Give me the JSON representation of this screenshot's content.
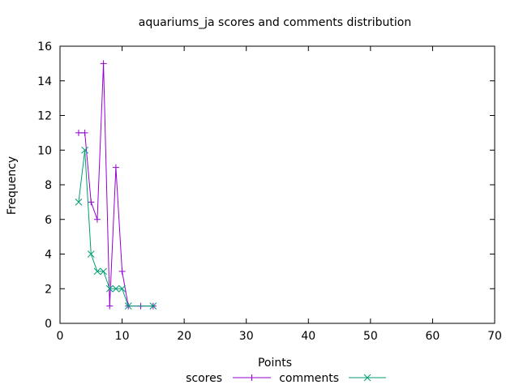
{
  "chart_data": {
    "type": "line",
    "title": "aquariums_ja scores and comments distribution",
    "xlabel": "Points",
    "ylabel": "Frequency",
    "xlim": [
      0,
      70
    ],
    "ylim": [
      0,
      16
    ],
    "xticks": [
      0,
      10,
      20,
      30,
      40,
      50,
      60,
      70
    ],
    "yticks": [
      0,
      2,
      4,
      6,
      8,
      10,
      12,
      14,
      16
    ],
    "grid": false,
    "legend_position": "bottom",
    "series": [
      {
        "name": "scores",
        "color": "#9400d3",
        "marker": "plus",
        "x": [
          3,
          4,
          5,
          6,
          7,
          8,
          9,
          10,
          11,
          13,
          15
        ],
        "y": [
          11,
          11,
          7,
          6,
          15,
          1,
          9,
          3,
          1,
          1,
          1
        ]
      },
      {
        "name": "comments",
        "color": "#009e73",
        "marker": "cross",
        "x": [
          3,
          4,
          5,
          6,
          7,
          8,
          9,
          10,
          11,
          15
        ],
        "y": [
          7,
          10,
          4,
          3,
          3,
          2,
          2,
          2,
          1,
          1
        ]
      }
    ]
  }
}
